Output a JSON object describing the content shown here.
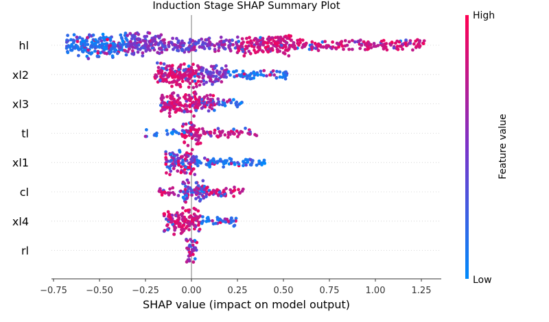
{
  "chart_data": {
    "type": "scatter",
    "title": "Induction Stage SHAP Summary Plot",
    "xlabel": "SHAP value (impact on model output)",
    "xlim": [
      -0.75,
      1.35
    ],
    "xticks": [
      "−0.75",
      "−0.50",
      "−0.25",
      "0.00",
      "0.25",
      "0.50",
      "0.75",
      "1.00",
      "1.25"
    ],
    "xtick_values": [
      -0.75,
      -0.5,
      -0.25,
      0.0,
      0.25,
      0.5,
      0.75,
      1.0,
      1.25
    ],
    "colorbar": {
      "label": "Feature value",
      "high_label": "High",
      "low_label": "Low",
      "colors": [
        "#008afb",
        "#7a33c9",
        "#ff0052"
      ]
    },
    "features": [
      {
        "name": "hl",
        "min": -0.68,
        "max": 1.27,
        "segments": [
          [
            -0.68,
            -0.35,
            "low",
            1.0
          ],
          [
            -0.35,
            -0.15,
            "mid",
            0.95
          ],
          [
            -0.15,
            0.25,
            "mid",
            0.55
          ],
          [
            0.25,
            0.55,
            "high",
            0.8
          ],
          [
            0.55,
            1.27,
            "high",
            0.35
          ]
        ]
      },
      {
        "name": "xl2",
        "min": -0.2,
        "max": 0.52,
        "segments": [
          [
            -0.2,
            0.05,
            "high",
            1.0
          ],
          [
            0.05,
            0.2,
            "mid",
            0.8
          ],
          [
            0.2,
            0.52,
            "low",
            0.3
          ]
        ]
      },
      {
        "name": "xl3",
        "min": -0.17,
        "max": 0.28,
        "segments": [
          [
            -0.17,
            0.05,
            "high",
            1.0
          ],
          [
            0.05,
            0.15,
            "mix",
            0.7
          ],
          [
            0.15,
            0.28,
            "low",
            0.25
          ]
        ]
      },
      {
        "name": "tl",
        "min": -0.25,
        "max": 0.36,
        "segments": [
          [
            -0.25,
            -0.05,
            "low",
            0.15
          ],
          [
            -0.05,
            0.05,
            "high",
            1.0
          ],
          [
            0.05,
            0.36,
            "high",
            0.25
          ]
        ]
      },
      {
        "name": "xl1",
        "min": -0.14,
        "max": 0.4,
        "segments": [
          [
            -0.14,
            0.03,
            "mix",
            1.0
          ],
          [
            0.03,
            0.4,
            "low",
            0.3
          ]
        ]
      },
      {
        "name": "cl",
        "min": -0.18,
        "max": 0.31,
        "segments": [
          [
            -0.18,
            -0.05,
            "high",
            0.25
          ],
          [
            -0.05,
            0.08,
            "mix",
            1.0
          ],
          [
            0.08,
            0.31,
            "high",
            0.3
          ]
        ]
      },
      {
        "name": "xl4",
        "min": -0.15,
        "max": 0.25,
        "segments": [
          [
            -0.15,
            0.05,
            "high",
            1.0
          ],
          [
            0.05,
            0.25,
            "low",
            0.3
          ]
        ]
      },
      {
        "name": "rl",
        "min": -0.03,
        "max": 0.03,
        "segments": [
          [
            -0.03,
            0.03,
            "mix",
            1.0
          ]
        ]
      }
    ]
  }
}
